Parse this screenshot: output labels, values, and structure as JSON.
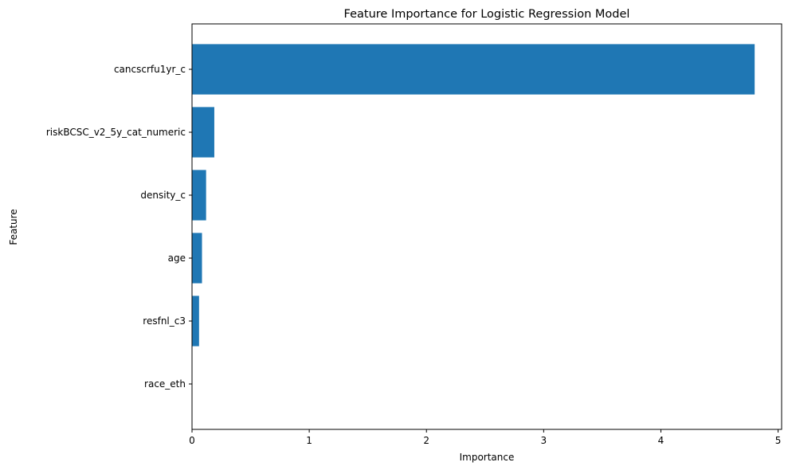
{
  "chart_data": {
    "type": "bar",
    "orientation": "horizontal",
    "title": "Feature Importance for Logistic Regression Model",
    "xlabel": "Importance",
    "ylabel": "Feature",
    "categories": [
      "cancscrfu1yr_c",
      "riskBCSC_v2_5y_cat_numeric",
      "density_c",
      "age",
      "resfnl_c3",
      "race_eth"
    ],
    "values": [
      4.8,
      0.19,
      0.12,
      0.085,
      0.06,
      0.0
    ],
    "xlim": [
      0,
      5.03
    ],
    "xticks": [
      0,
      1,
      2,
      3,
      4,
      5
    ],
    "grid": false,
    "bar_color": "#1f77b4"
  }
}
